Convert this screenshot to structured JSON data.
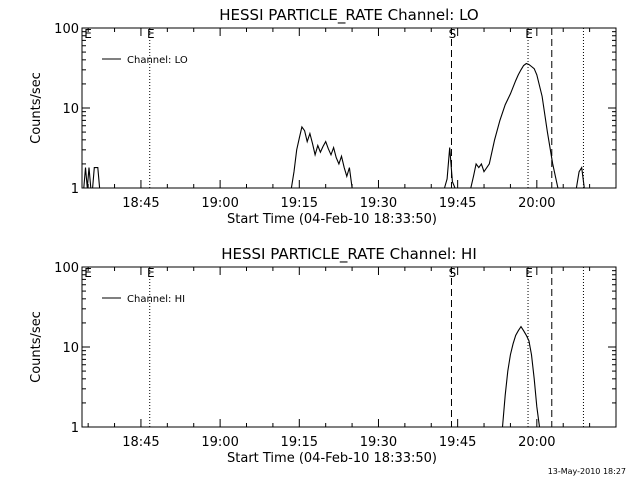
{
  "footer_date": "13-May-2010 18:27",
  "chart_data": [
    {
      "type": "line",
      "title": "HESSI PARTICLE_RATE Channel: LO",
      "xlabel": "Start Time (04-Feb-10 18:33:50)",
      "ylabel": "Counts/sec",
      "y_scale": "log",
      "ylim": [
        1,
        100
      ],
      "y_ticks": [
        {
          "value": 1,
          "label": "1"
        },
        {
          "value": 10,
          "label": "10"
        },
        {
          "value": 100,
          "label": "100"
        }
      ],
      "xlim": [
        "18:33:50",
        "20:15:00"
      ],
      "x_ticks": [
        {
          "value": "18:45",
          "label": "18:45"
        },
        {
          "value": "19:00",
          "label": "19:00"
        },
        {
          "value": "19:15",
          "label": "19:15"
        },
        {
          "value": "19:30",
          "label": "19:30"
        },
        {
          "value": "19:45",
          "label": "19:45"
        },
        {
          "value": "20:00",
          "label": "20:00"
        }
      ],
      "legend": {
        "position": "top-left",
        "entries": [
          "Channel: LO"
        ]
      },
      "series": [
        {
          "name": "Channel: LO",
          "x": [
            "18:34:10",
            "18:34:30",
            "18:34:50",
            "18:35:10",
            "18:35:30",
            "18:35:50",
            "18:36:10",
            "18:36:30",
            "18:36:50",
            "18:37:10",
            "19:13:30",
            "19:14:00",
            "19:14:30",
            "19:15:00",
            "19:15:30",
            "19:16:00",
            "19:16:30",
            "19:17:00",
            "19:17:30",
            "19:18:00",
            "19:18:30",
            "19:19:00",
            "19:19:30",
            "19:20:00",
            "19:20:30",
            "19:21:00",
            "19:21:30",
            "19:22:00",
            "19:22:30",
            "19:23:00",
            "19:23:30",
            "19:24:00",
            "19:24:30",
            "19:25:00",
            "19:25:30",
            "19:42:30",
            "19:43:00",
            "19:43:30",
            "19:44:00",
            "19:44:30",
            "19:45:00",
            "19:45:30",
            "19:47:30",
            "19:48:00",
            "19:48:30",
            "19:49:00",
            "19:49:30",
            "19:50:00",
            "19:51:00",
            "19:52:00",
            "19:53:00",
            "19:54:00",
            "19:55:00",
            "19:56:00",
            "19:56:30",
            "19:57:00",
            "19:57:30",
            "19:58:00",
            "19:58:30",
            "19:59:00",
            "19:59:30",
            "20:00:00",
            "20:01:00",
            "20:02:00",
            "20:03:00",
            "20:04:00",
            "20:07:30",
            "20:08:00",
            "20:08:30",
            "20:09:00"
          ],
          "y": [
            1,
            1.8,
            1,
            1.8,
            1,
            1,
            1.8,
            1.8,
            1.8,
            1,
            1,
            1.6,
            3,
            4.2,
            5.8,
            5.2,
            3.8,
            4.8,
            3.6,
            2.6,
            3.4,
            2.8,
            3.3,
            3.8,
            3.1,
            2.6,
            3.2,
            2.4,
            2,
            2.5,
            1.8,
            1.4,
            1.8,
            1,
            1,
            1,
            1.3,
            3.2,
            1.2,
            1,
            1,
            1,
            1,
            1.4,
            2,
            1.8,
            2,
            1.6,
            2,
            4,
            7,
            11,
            15,
            22,
            26,
            30,
            34,
            36,
            35,
            33,
            31,
            26,
            14,
            5,
            2,
            1,
            1,
            1.6,
            1.8,
            1
          ]
        }
      ],
      "vertical_markers": [
        {
          "x": "18:46:40",
          "style": "dotted",
          "label": "E"
        },
        {
          "x": "19:43:50",
          "style": "dashed",
          "label": "S"
        },
        {
          "x": "19:58:20",
          "style": "dotted",
          "label": "E"
        },
        {
          "x": "20:02:50",
          "style": "dashed",
          "label": ""
        },
        {
          "x": "20:08:50",
          "style": "dotted",
          "label": ""
        }
      ]
    },
    {
      "type": "line",
      "title": "HESSI PARTICLE_RATE Channel: HI",
      "xlabel": "Start Time (04-Feb-10 18:33:50)",
      "ylabel": "Counts/sec",
      "y_scale": "log",
      "ylim": [
        1,
        100
      ],
      "y_ticks": [
        {
          "value": 1,
          "label": "1"
        },
        {
          "value": 10,
          "label": "10"
        },
        {
          "value": 100,
          "label": "100"
        }
      ],
      "xlim": [
        "18:33:50",
        "20:15:00"
      ],
      "x_ticks": [
        {
          "value": "18:45",
          "label": "18:45"
        },
        {
          "value": "19:00",
          "label": "19:00"
        },
        {
          "value": "19:15",
          "label": "19:15"
        },
        {
          "value": "19:30",
          "label": "19:30"
        },
        {
          "value": "19:45",
          "label": "19:45"
        },
        {
          "value": "20:00",
          "label": "20:00"
        }
      ],
      "legend": {
        "position": "top-left",
        "entries": [
          "Channel: HI"
        ]
      },
      "series": [
        {
          "name": "Channel: HI",
          "x": [
            "19:53:30",
            "19:54:00",
            "19:54:30",
            "19:55:00",
            "19:55:30",
            "19:56:00",
            "19:56:30",
            "19:57:00",
            "19:57:30",
            "19:58:00",
            "19:58:30",
            "19:59:00",
            "19:59:30",
            "20:00:00",
            "20:00:30"
          ],
          "y": [
            1,
            2.5,
            5,
            8,
            11,
            14,
            16,
            18,
            16,
            14,
            12,
            8,
            4,
            1.8,
            1
          ]
        }
      ],
      "vertical_markers": [
        {
          "x": "18:46:40",
          "style": "dotted",
          "label": "E"
        },
        {
          "x": "19:43:50",
          "style": "dashed",
          "label": "S"
        },
        {
          "x": "19:58:20",
          "style": "dotted",
          "label": "E"
        },
        {
          "x": "20:02:50",
          "style": "dashed",
          "label": ""
        },
        {
          "x": "20:08:50",
          "style": "dotted",
          "label": ""
        }
      ]
    }
  ]
}
